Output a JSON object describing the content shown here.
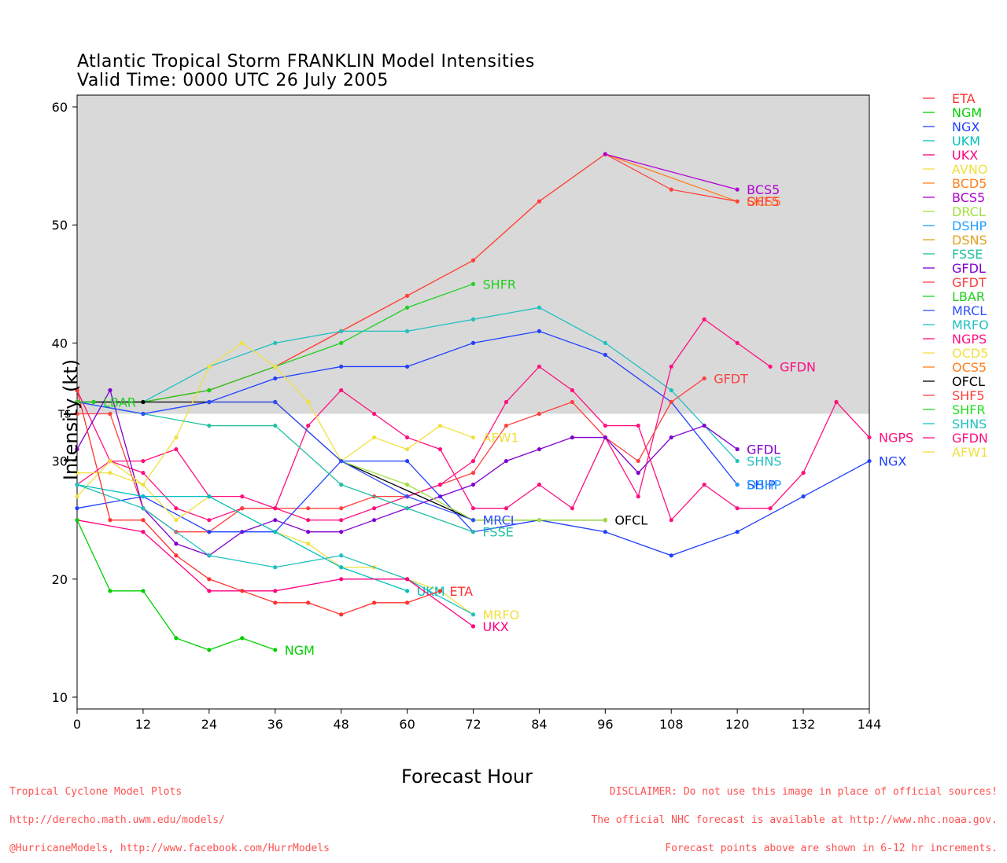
{
  "title": "Atlantic Tropical Storm FRANKLIN Model Intensities",
  "subtitle": "Valid Time: 0000 UTC 26 July 2005",
  "footer_left": [
    "Tropical Cyclone Model Plots",
    "http://derecho.math.uwm.edu/models/",
    "@HurricaneModels, http://www.facebook.com/HurrModels"
  ],
  "footer_right": [
    "DISCLAIMER: Do not use this image in place of official sources!",
    "The official NHC forecast is available at http://www.nhc.noaa.gov.",
    "Forecast points above are shown in 6-12 hr increments."
  ],
  "chart_data": {
    "type": "line",
    "xlabel": "Forecast Hour",
    "ylabel": "Intensity (kt)",
    "xlim": [
      0,
      144
    ],
    "ylim": [
      9,
      61
    ],
    "xticks": [
      0,
      12,
      24,
      36,
      48,
      60,
      72,
      84,
      96,
      108,
      120,
      132,
      144
    ],
    "yticks": [
      10,
      20,
      30,
      40,
      50,
      60
    ],
    "ts_threshold": 34,
    "ts_label": "TS",
    "shade_color": "#d9d9d9",
    "legend_position": "right",
    "legend": [
      {
        "name": "ETA",
        "color": "#ff3030"
      },
      {
        "name": "NGM",
        "color": "#00d000"
      },
      {
        "name": "NGX",
        "color": "#2040ff"
      },
      {
        "name": "UKM",
        "color": "#00c0c0"
      },
      {
        "name": "UKX",
        "color": "#ff0080"
      },
      {
        "name": "AVNO",
        "color": "#f0e040"
      },
      {
        "name": "BCD5",
        "color": "#ff8020"
      },
      {
        "name": "BCS5",
        "color": "#b000d0"
      },
      {
        "name": "DRCL",
        "color": "#a0e040"
      },
      {
        "name": "DSHP",
        "color": "#20a0ff"
      },
      {
        "name": "DSNS",
        "color": "#e0a020"
      },
      {
        "name": "FSSE",
        "color": "#20c0a0"
      },
      {
        "name": "GFDL",
        "color": "#8000d0"
      },
      {
        "name": "GFDT",
        "color": "#ff4040"
      },
      {
        "name": "LBAR",
        "color": "#20d020"
      },
      {
        "name": "MRCL",
        "color": "#3050ff"
      },
      {
        "name": "MRFO",
        "color": "#20c0c0"
      },
      {
        "name": "NGPS",
        "color": "#ff1080"
      },
      {
        "name": "OCD5",
        "color": "#f0e040"
      },
      {
        "name": "OCS5",
        "color": "#ff8020"
      },
      {
        "name": "OFCL",
        "color": "#000000"
      },
      {
        "name": "SHF5",
        "color": "#ff4040"
      },
      {
        "name": "SHFR",
        "color": "#20e020"
      },
      {
        "name": "SHNS",
        "color": "#20c0c0"
      },
      {
        "name": "GFDN",
        "color": "#ff1080"
      },
      {
        "name": "AFW1",
        "color": "#f0e040"
      }
    ],
    "series": [
      {
        "name": "OCS5",
        "color": "#ff8020",
        "x": [
          0,
          12,
          24,
          36,
          48,
          60,
          72,
          84,
          96,
          120
        ],
        "y": [
          35,
          35,
          36,
          38,
          41,
          44,
          47,
          52,
          56,
          52
        ],
        "label": "OCS5"
      },
      {
        "name": "SHF5",
        "color": "#ff4040",
        "x": [
          0,
          12,
          24,
          36,
          48,
          60,
          72,
          84,
          96,
          108,
          120
        ],
        "y": [
          35,
          35,
          36,
          38,
          41,
          44,
          47,
          52,
          56,
          53,
          52
        ],
        "label": "SHF5"
      },
      {
        "name": "BCS5",
        "color": "#b000d0",
        "x": [
          96,
          120
        ],
        "y": [
          56,
          53
        ],
        "label": "BCS5"
      },
      {
        "name": "SHFR",
        "color": "#20d020",
        "x": [
          0,
          12,
          24,
          36,
          48,
          60,
          72
        ],
        "y": [
          35,
          35,
          36,
          38,
          40,
          43,
          45
        ],
        "label": "SHFR"
      },
      {
        "name": "SHNS",
        "color": "#20c0c0",
        "x": [
          0,
          12,
          24,
          36,
          48,
          60,
          72,
          84,
          96,
          108,
          120
        ],
        "y": [
          35,
          35,
          38,
          40,
          41,
          41,
          42,
          43,
          40,
          36,
          30
        ],
        "label": "SHNS"
      },
      {
        "name": "SHIP",
        "color": "#2040ff",
        "x": [
          0,
          12,
          24,
          36,
          48,
          60,
          72,
          84,
          96,
          108,
          120
        ],
        "y": [
          35,
          34,
          35,
          37,
          38,
          38,
          40,
          41,
          39,
          35,
          28
        ],
        "label": "SHIP"
      },
      {
        "name": "DSHP",
        "color": "#20a0ff",
        "x": [
          120
        ],
        "y": [
          28
        ],
        "label": "DSHP"
      },
      {
        "name": "GFDN",
        "color": "#ff1080",
        "x": [
          0,
          6,
          12,
          18,
          24,
          30,
          36,
          42,
          48,
          54,
          60,
          66,
          72,
          78,
          84,
          90,
          96,
          102,
          108,
          114,
          120,
          126
        ],
        "y": [
          36,
          30,
          29,
          26,
          25,
          26,
          26,
          33,
          36,
          34,
          32,
          31,
          26,
          26,
          28,
          26,
          32,
          27,
          38,
          42,
          40,
          38
        ],
        "label": "GFDN"
      },
      {
        "name": "GFDT",
        "color": "#ff4040",
        "x": [
          0,
          6,
          12,
          18,
          24,
          30,
          36,
          42,
          48,
          54,
          60,
          66,
          72,
          78,
          84,
          90,
          96,
          102,
          108,
          114
        ],
        "y": [
          34,
          34,
          26,
          24,
          24,
          26,
          26,
          26,
          26,
          27,
          27,
          28,
          29,
          33,
          34,
          35,
          32,
          30,
          35,
          37
        ],
        "label": "GFDT"
      },
      {
        "name": "GFDL",
        "color": "#8000d0",
        "x": [
          0,
          6,
          12,
          18,
          24,
          30,
          36,
          42,
          48,
          54,
          60,
          66,
          72,
          78,
          84,
          90,
          96,
          102,
          108,
          114,
          120
        ],
        "y": [
          31,
          36,
          26,
          23,
          22,
          24,
          25,
          24,
          24,
          25,
          26,
          27,
          28,
          30,
          31,
          32,
          32,
          29,
          32,
          33,
          31
        ],
        "label": "GFDL"
      },
      {
        "name": "NGPS",
        "color": "#ff1080",
        "x": [
          0,
          6,
          12,
          18,
          24,
          30,
          36,
          42,
          48,
          54,
          60,
          66,
          72,
          78,
          84,
          90,
          96,
          102,
          108,
          114,
          120,
          126,
          132,
          138,
          144
        ],
        "y": [
          28,
          30,
          30,
          31,
          27,
          27,
          26,
          25,
          25,
          26,
          27,
          28,
          30,
          35,
          38,
          36,
          33,
          33,
          25,
          28,
          26,
          26,
          29,
          35,
          32
        ],
        "label": "NGPS"
      },
      {
        "name": "NGX",
        "color": "#2040ff",
        "x": [
          0,
          12,
          24,
          36,
          48,
          60,
          72,
          84,
          96,
          108,
          120,
          132,
          144
        ],
        "y": [
          26,
          27,
          24,
          24,
          30,
          30,
          24,
          25,
          24,
          22,
          24,
          27,
          30
        ],
        "label": "NGX"
      },
      {
        "name": "OFCL",
        "color": "#000000",
        "x": [
          0,
          3,
          12,
          24,
          36,
          48,
          72,
          96
        ],
        "y": [
          35,
          35,
          35,
          35,
          35,
          30,
          25,
          25
        ],
        "label": "OFCL"
      },
      {
        "name": "AFW1",
        "color": "#f0e040",
        "x": [
          0,
          6,
          12,
          18,
          24,
          30,
          36,
          42,
          48,
          54,
          60,
          66,
          72
        ],
        "y": [
          27,
          30,
          28,
          32,
          38,
          40,
          38,
          35,
          30,
          32,
          31,
          33,
          32
        ],
        "label": "AFW1"
      },
      {
        "name": "AVNO",
        "color": "#f0e040",
        "x": [
          0,
          6,
          12,
          18,
          24,
          36,
          42,
          48,
          54,
          60,
          66,
          72
        ],
        "y": [
          29,
          29,
          28,
          25,
          27,
          24,
          23,
          21,
          21,
          20,
          19,
          17
        ],
        "label": "MRFO"
      },
      {
        "name": "DRCL",
        "color": "#a0e040",
        "x": [
          48,
          60,
          72,
          84,
          96
        ],
        "y": [
          30,
          28,
          25,
          25,
          25
        ],
        "label": ""
      },
      {
        "name": "FSSE",
        "color": "#20c0a0",
        "x": [
          0,
          12,
          24,
          36,
          48,
          60,
          72
        ],
        "y": [
          35,
          34,
          33,
          33,
          28,
          26,
          24
        ],
        "label": "FSSE"
      },
      {
        "name": "MRCL",
        "color": "#3050ff",
        "x": [
          0,
          12,
          24,
          36,
          48,
          60,
          72
        ],
        "y": [
          35,
          34,
          35,
          35,
          30,
          27,
          25
        ],
        "label": "MRCL"
      },
      {
        "name": "UKM",
        "color": "#00c0c0",
        "x": [
          0,
          12,
          24,
          36,
          48,
          60
        ],
        "y": [
          28,
          27,
          27,
          24,
          21,
          19
        ],
        "label": "UKM"
      },
      {
        "name": "MRFO",
        "color": "#20c0c0",
        "x": [
          0,
          12,
          24,
          36,
          48,
          60,
          72
        ],
        "y": [
          28,
          26,
          22,
          21,
          22,
          20,
          17
        ],
        "label": ""
      },
      {
        "name": "UKX",
        "color": "#ff0080",
        "x": [
          0,
          12,
          24,
          36,
          48,
          60,
          72
        ],
        "y": [
          25,
          24,
          19,
          19,
          20,
          20,
          16
        ],
        "label": "UKX"
      },
      {
        "name": "ETA",
        "color": "#ff3030",
        "x": [
          0,
          6,
          12,
          18,
          24,
          30,
          36,
          42,
          48,
          54,
          60,
          66
        ],
        "y": [
          36,
          25,
          25,
          22,
          20,
          19,
          18,
          18,
          17,
          18,
          18,
          19
        ],
        "label": "ETA"
      },
      {
        "name": "NGM",
        "color": "#00d000",
        "x": [
          0,
          6,
          12,
          18,
          24,
          30,
          36
        ],
        "y": [
          25,
          19,
          19,
          15,
          14,
          15,
          14
        ],
        "label": "NGM"
      },
      {
        "name": "LBAR",
        "color": "#20d020",
        "x": [
          0,
          3
        ],
        "y": [
          35,
          35
        ],
        "label": "LBAR"
      }
    ]
  }
}
